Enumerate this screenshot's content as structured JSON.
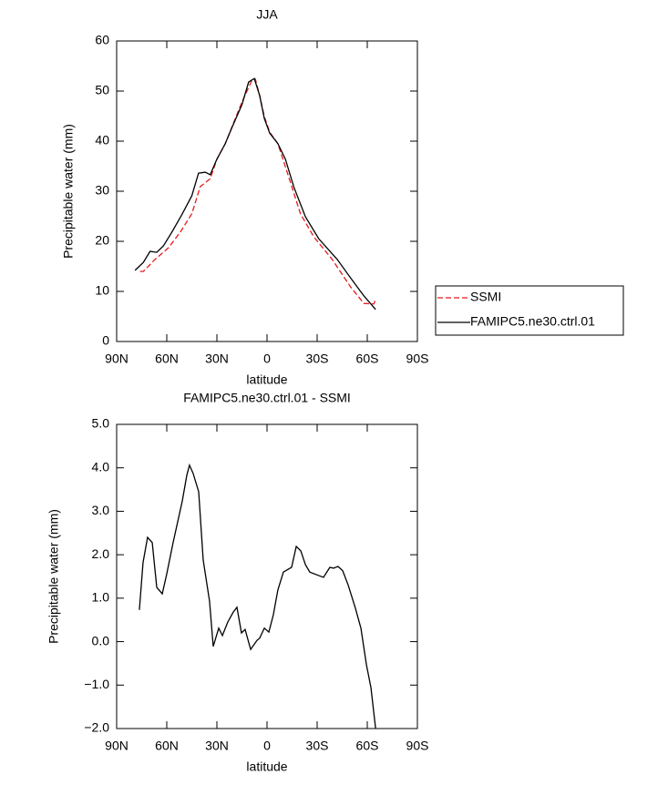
{
  "chart_data": [
    {
      "type": "line",
      "title": "JJA",
      "xlabel": "latitude",
      "ylabel": "Precipitable water (mm)",
      "xlim": [
        90,
        -90
      ],
      "xticks": [
        {
          "value": 90,
          "label": "90N"
        },
        {
          "value": 60,
          "label": "60N"
        },
        {
          "value": 30,
          "label": "30N"
        },
        0,
        {
          "value": -30,
          "label": "30S"
        },
        {
          "value": -60,
          "label": "60S"
        },
        {
          "value": -90,
          "label": "90S"
        }
      ],
      "ylim": [
        0,
        60
      ],
      "yticks": [
        0,
        10,
        20,
        30,
        40,
        50,
        60
      ],
      "legend": "right",
      "series": [
        {
          "name": "SSMI",
          "color": "#e41a1c",
          "dashed": true,
          "x": [
            76,
            74,
            67,
            59,
            52,
            45,
            40,
            34,
            30,
            25,
            15,
            9,
            7,
            4.4,
            1.6,
            -1.6,
            -6.5,
            -14,
            -20,
            -28,
            -39,
            -50,
            -58,
            -64,
            -65
          ],
          "values": [
            14.0,
            14.0,
            16.4,
            18.7,
            21.8,
            25.5,
            30.9,
            32.5,
            36.4,
            39.5,
            47.8,
            52.2,
            52.4,
            49.1,
            44.9,
            41.8,
            39.5,
            31.8,
            25.5,
            20.9,
            16.4,
            10.9,
            7.6,
            7.5,
            8.5
          ]
        },
        {
          "name": "FAMIPC5.ne30.ctrl.01",
          "color": "#000000",
          "dashed": false,
          "x": [
            79,
            74,
            70,
            66,
            62,
            57,
            51,
            45,
            41,
            37,
            34,
            30,
            25,
            21,
            15,
            11,
            7.6,
            4.4,
            1.6,
            -1.6,
            -6.5,
            -11,
            -16,
            -23,
            -31,
            -42,
            -50,
            -58,
            -65
          ],
          "values": [
            14.2,
            15.8,
            18.0,
            17.8,
            19.1,
            21.8,
            25.3,
            29.1,
            33.6,
            33.8,
            33.3,
            36.4,
            39.5,
            42.7,
            47.3,
            51.8,
            52.5,
            49.1,
            44.5,
            41.6,
            39.5,
            36.4,
            30.9,
            24.9,
            20.5,
            16.4,
            12.7,
            9.1,
            6.4
          ]
        }
      ]
    },
    {
      "type": "line",
      "title": "FAMIPC5.ne30.ctrl.01 - SSMI",
      "xlabel": "latitude",
      "ylabel": "Precipitable water (mm)",
      "xlim": [
        90,
        -90
      ],
      "xticks": [
        {
          "value": 90,
          "label": "90N"
        },
        {
          "value": 60,
          "label": "60N"
        },
        {
          "value": 30,
          "label": "30N"
        },
        0,
        {
          "value": -30,
          "label": "30S"
        },
        {
          "value": -60,
          "label": "60S"
        },
        {
          "value": -90,
          "label": "90S"
        }
      ],
      "ylim": [
        -2,
        5
      ],
      "yticks": [
        {
          "value": -2,
          "label": "−2.0"
        },
        {
          "value": -1,
          "label": "−1.0"
        },
        {
          "value": 0,
          "label": "0.0"
        },
        {
          "value": 1,
          "label": "1.0"
        },
        {
          "value": 2,
          "label": "2.0"
        },
        {
          "value": 3,
          "label": "3.0"
        },
        {
          "value": 4,
          "label": "4.0"
        },
        {
          "value": 5,
          "label": "5.0"
        }
      ],
      "series": [
        {
          "color": "#000000",
          "dashed": false,
          "x": [
            76.4,
            74.2,
            71.5,
            68.7,
            66,
            62.7,
            60,
            56.2,
            50.7,
            48,
            46.4,
            44.2,
            40.9,
            38.2,
            34.4,
            32.2,
            28.9,
            26.7,
            23.5,
            20.2,
            18,
            15.3,
            13.1,
            9.8,
            6,
            4.4,
            1.6,
            -1.1,
            -3.8,
            -6.5,
            -9.8,
            -14.7,
            -17.5,
            -20.2,
            -23,
            -25.6,
            -31,
            -33.8,
            -37.6,
            -39.8,
            -42.5,
            -45.3,
            -48.5,
            -52.9,
            -56.2,
            -59.5,
            -62.2,
            -65
          ],
          "values": [
            0.73,
            1.82,
            2.4,
            2.28,
            1.25,
            1.1,
            1.56,
            2.28,
            3.24,
            3.83,
            4.06,
            3.87,
            3.45,
            1.88,
            0.93,
            -0.11,
            0.31,
            0.14,
            0.45,
            0.68,
            0.79,
            0.2,
            0.28,
            -0.18,
            0.03,
            0.08,
            0.31,
            0.22,
            0.62,
            1.19,
            1.6,
            1.71,
            2.19,
            2.09,
            1.77,
            1.6,
            1.52,
            1.48,
            1.71,
            1.69,
            1.73,
            1.63,
            1.31,
            0.77,
            0.31,
            -0.53,
            -1.06,
            -2.0
          ]
        }
      ]
    }
  ]
}
